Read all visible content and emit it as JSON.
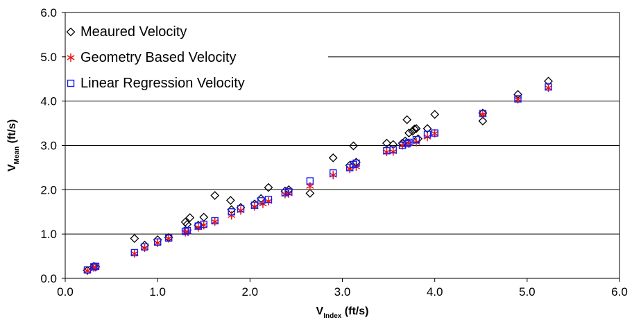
{
  "chart_data": {
    "type": "scatter",
    "title": "",
    "xlabel": {
      "main": "V",
      "sub": "Index",
      "unit": " (ft/s)"
    },
    "ylabel": {
      "main": "V",
      "sub": "Mean",
      "unit": " (ft/s)"
    },
    "xlim": [
      0,
      6
    ],
    "ylim": [
      0,
      6
    ],
    "xticks": [
      "0.0",
      "1.0",
      "2.0",
      "3.0",
      "4.0",
      "5.0",
      "6.0"
    ],
    "yticks": [
      "0.0",
      "1.0",
      "2.0",
      "3.0",
      "4.0",
      "5.0",
      "6.0"
    ],
    "grid": "horizontal",
    "legend_position": "top-left",
    "series": [
      {
        "name": "Meaured Velocity",
        "marker": "diamond",
        "color": "#000000",
        "points": [
          [
            0.24,
            0.18
          ],
          [
            0.31,
            0.27
          ],
          [
            0.33,
            0.26
          ],
          [
            0.75,
            0.9
          ],
          [
            0.86,
            0.75
          ],
          [
            1.0,
            0.87
          ],
          [
            1.12,
            0.92
          ],
          [
            1.3,
            1.27
          ],
          [
            1.32,
            1.22
          ],
          [
            1.35,
            1.37
          ],
          [
            1.44,
            1.2
          ],
          [
            1.5,
            1.38
          ],
          [
            1.62,
            1.87
          ],
          [
            1.79,
            1.76
          ],
          [
            1.8,
            1.55
          ],
          [
            1.9,
            1.6
          ],
          [
            2.05,
            1.68
          ],
          [
            2.12,
            1.8
          ],
          [
            2.2,
            2.05
          ],
          [
            2.38,
            1.97
          ],
          [
            2.42,
            2.0
          ],
          [
            2.65,
            1.92
          ],
          [
            2.9,
            2.72
          ],
          [
            3.08,
            2.55
          ],
          [
            3.12,
            2.99
          ],
          [
            3.15,
            2.62
          ],
          [
            3.48,
            3.05
          ],
          [
            3.55,
            3.02
          ],
          [
            3.65,
            3.05
          ],
          [
            3.68,
            3.1
          ],
          [
            3.7,
            3.58
          ],
          [
            3.72,
            3.28
          ],
          [
            3.76,
            3.32
          ],
          [
            3.78,
            3.37
          ],
          [
            3.8,
            3.38
          ],
          [
            3.82,
            3.15
          ],
          [
            3.92,
            3.38
          ],
          [
            4.0,
            3.7
          ],
          [
            4.52,
            3.55
          ],
          [
            4.52,
            3.73
          ],
          [
            4.9,
            4.15
          ],
          [
            5.23,
            4.45
          ]
        ]
      },
      {
        "name": "Geometry Based Velocity",
        "marker": "asterisk",
        "color": "#ee1111",
        "points": [
          [
            0.24,
            0.17
          ],
          [
            0.31,
            0.24
          ],
          [
            0.33,
            0.25
          ],
          [
            0.75,
            0.56
          ],
          [
            0.86,
            0.69
          ],
          [
            1.0,
            0.8
          ],
          [
            1.12,
            0.9
          ],
          [
            1.3,
            1.04
          ],
          [
            1.33,
            1.05
          ],
          [
            1.44,
            1.15
          ],
          [
            1.5,
            1.2
          ],
          [
            1.62,
            1.28
          ],
          [
            1.8,
            1.42
          ],
          [
            1.9,
            1.53
          ],
          [
            2.05,
            1.62
          ],
          [
            2.14,
            1.68
          ],
          [
            2.2,
            1.74
          ],
          [
            2.38,
            1.9
          ],
          [
            2.42,
            1.91
          ],
          [
            2.65,
            2.08
          ],
          [
            2.9,
            2.33
          ],
          [
            3.08,
            2.47
          ],
          [
            3.15,
            2.52
          ],
          [
            3.48,
            2.85
          ],
          [
            3.55,
            2.86
          ],
          [
            3.65,
            3.0
          ],
          [
            3.72,
            3.04
          ],
          [
            3.8,
            3.07
          ],
          [
            3.92,
            3.19
          ],
          [
            4.0,
            3.27
          ],
          [
            4.52,
            3.7
          ],
          [
            4.9,
            4.04
          ],
          [
            5.23,
            4.3
          ]
        ]
      },
      {
        "name": "Linear Regression Velocity",
        "marker": "square",
        "color": "#1a1aee",
        "points": [
          [
            0.24,
            0.19
          ],
          [
            0.31,
            0.26
          ],
          [
            0.33,
            0.27
          ],
          [
            0.75,
            0.58
          ],
          [
            0.86,
            0.71
          ],
          [
            1.0,
            0.82
          ],
          [
            1.12,
            0.91
          ],
          [
            1.3,
            1.06
          ],
          [
            1.32,
            1.08
          ],
          [
            1.44,
            1.18
          ],
          [
            1.5,
            1.22
          ],
          [
            1.62,
            1.3
          ],
          [
            1.8,
            1.5
          ],
          [
            1.9,
            1.57
          ],
          [
            2.05,
            1.65
          ],
          [
            2.12,
            1.75
          ],
          [
            2.2,
            1.78
          ],
          [
            2.38,
            1.93
          ],
          [
            2.42,
            1.96
          ],
          [
            2.65,
            2.2
          ],
          [
            2.9,
            2.38
          ],
          [
            3.08,
            2.5
          ],
          [
            3.12,
            2.57
          ],
          [
            3.15,
            2.6
          ],
          [
            3.48,
            2.88
          ],
          [
            3.55,
            2.9
          ],
          [
            3.65,
            3.0
          ],
          [
            3.7,
            3.04
          ],
          [
            3.72,
            3.07
          ],
          [
            3.8,
            3.13
          ],
          [
            3.92,
            3.25
          ],
          [
            4.0,
            3.28
          ],
          [
            4.52,
            3.72
          ],
          [
            4.9,
            4.05
          ],
          [
            5.23,
            4.32
          ]
        ]
      }
    ]
  }
}
